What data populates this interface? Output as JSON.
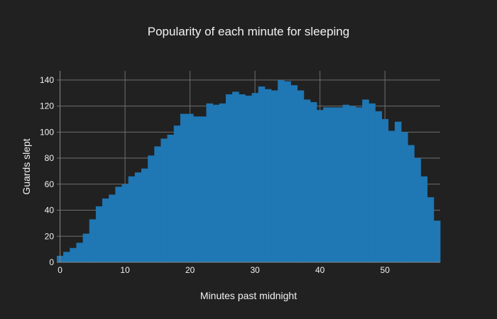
{
  "chart_data": {
    "type": "bar",
    "title": "Popularity of each minute for sleeping",
    "xlabel": "Minutes past midnight",
    "ylabel": "Guards slept",
    "x": [
      0,
      1,
      2,
      3,
      4,
      5,
      6,
      7,
      8,
      9,
      10,
      11,
      12,
      13,
      14,
      15,
      16,
      17,
      18,
      19,
      20,
      21,
      22,
      23,
      24,
      25,
      26,
      27,
      28,
      29,
      30,
      31,
      32,
      33,
      34,
      35,
      36,
      37,
      38,
      39,
      40,
      41,
      42,
      43,
      44,
      45,
      46,
      47,
      48,
      49,
      50,
      51,
      52,
      53,
      54,
      55,
      56,
      57,
      58
    ],
    "values": [
      5,
      8,
      11,
      15,
      22,
      33,
      43,
      49,
      52,
      58,
      60,
      66,
      69,
      72,
      82,
      89,
      95,
      98,
      105,
      114,
      114,
      112,
      112,
      122,
      121,
      122,
      129,
      131,
      129,
      128,
      130,
      135,
      133,
      132,
      140,
      139,
      136,
      132,
      125,
      123,
      117,
      119,
      119,
      119,
      121,
      120,
      119,
      125,
      122,
      116,
      110,
      101,
      108,
      100,
      90,
      80,
      66,
      50,
      32
    ],
    "xlim": [
      -0.5,
      58.5
    ],
    "ylim": [
      0,
      147
    ],
    "x_ticks": [
      0,
      10,
      20,
      30,
      40,
      50
    ],
    "y_ticks": [
      0,
      20,
      40,
      60,
      80,
      100,
      120,
      140
    ],
    "grid": true,
    "colors": {
      "background": "#212121",
      "bar": "#1f77b4",
      "grid": "#6e6e6e",
      "text": "#f2f2f2"
    }
  }
}
